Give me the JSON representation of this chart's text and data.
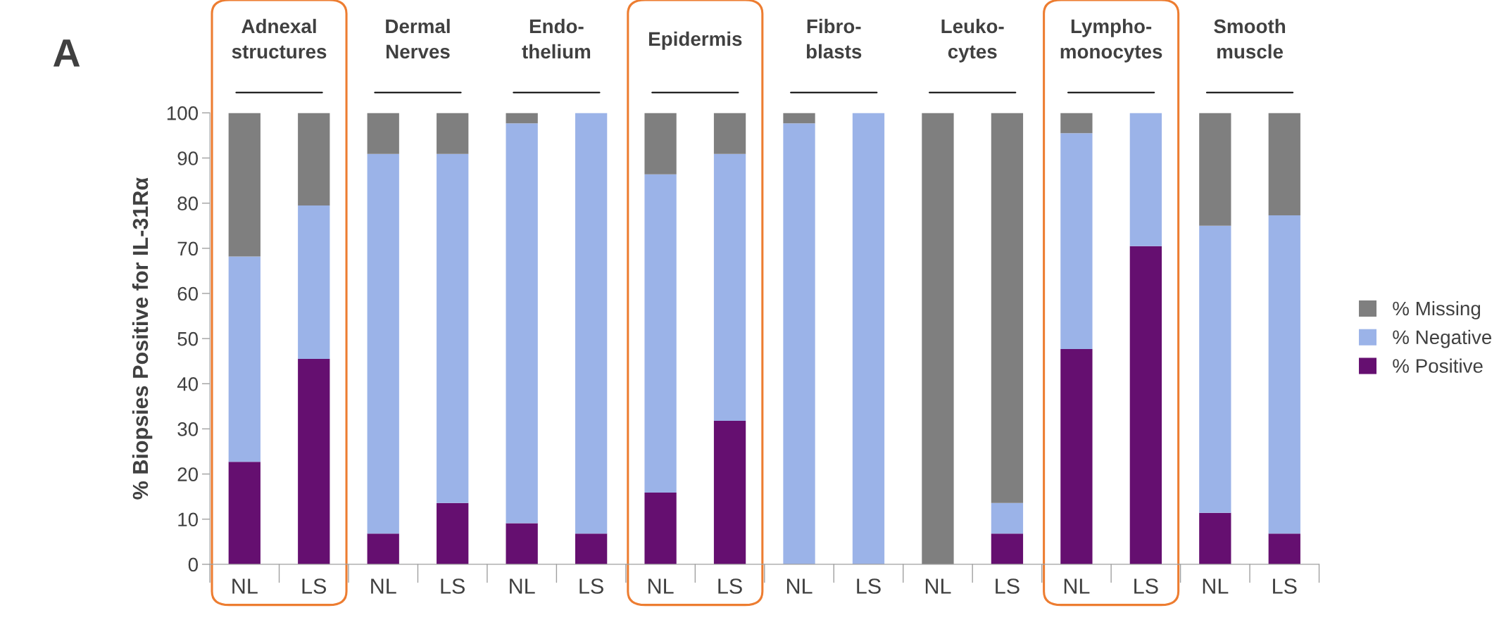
{
  "chart_data": {
    "type": "bar",
    "stacked": true,
    "title": "A",
    "ylabel": "% Biopsies Positive for IL-31Rα",
    "categories": [
      "NL",
      "LS",
      "NL",
      "LS",
      "NL",
      "LS",
      "NL",
      "LS",
      "NL",
      "LS",
      "NL",
      "LS",
      "NL",
      "LS",
      "NL",
      "LS"
    ],
    "series": [
      {
        "name": "% Positive",
        "color": "#650f70",
        "values": [
          22.7,
          45.5,
          6.8,
          13.6,
          9.1,
          6.8,
          15.9,
          31.8,
          0,
          0,
          0,
          6.8,
          47.7,
          70.5,
          11.4,
          6.8
        ]
      },
      {
        "name": "% Negative",
        "color": "#9bb3e8",
        "values": [
          45.5,
          34.0,
          84.1,
          77.3,
          88.6,
          93.2,
          70.5,
          59.1,
          97.7,
          100,
          0,
          6.8,
          47.8,
          29.5,
          63.6,
          70.5
        ]
      },
      {
        "name": "% Missing",
        "color": "#7f7f7f",
        "values": [
          31.8,
          20.5,
          9.1,
          9.1,
          2.3,
          0,
          13.6,
          9.1,
          2.3,
          0,
          100,
          86.4,
          4.5,
          0,
          25,
          22.7
        ]
      }
    ],
    "annotations": [
      "Adnexal\nstructures",
      "Dermal\nNerves",
      "Endo-\nthelium",
      "Epidermis",
      "Fibro-\nblasts",
      "Leuko-\ncytes",
      "Lympho-\nmonocytes",
      "Smooth\nmuscle"
    ],
    "ylim": [
      0,
      100
    ],
    "yticks": [
      0,
      10,
      20,
      30,
      40,
      50,
      60,
      70,
      80,
      90,
      100
    ],
    "grid": false,
    "legend": "right"
  }
}
